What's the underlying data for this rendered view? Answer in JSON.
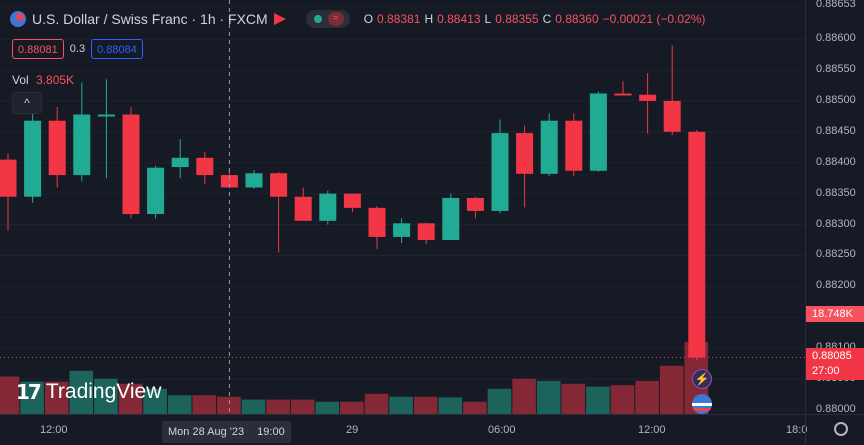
{
  "symbol": {
    "title": "U.S. Dollar / Swiss Franc · 1h · FXCM",
    "open_label": "O",
    "open": "0.88381",
    "high_label": "H",
    "high": "0.88413",
    "low_label": "L",
    "low": "0.88355",
    "close_label": "C",
    "close": "0.88360",
    "change": "−0.00021 (−0.02%)"
  },
  "trade": {
    "sell": "0.88081",
    "spread": "0.3",
    "buy": "0.88084"
  },
  "volume": {
    "label": "Vol",
    "value": "3.805K"
  },
  "brand": "TradingView",
  "price_axis": {
    "ticks": [
      "0.88653",
      "0.88600",
      "0.88550",
      "0.88500",
      "0.88450",
      "0.88400",
      "0.88350",
      "0.88300",
      "0.88250",
      "0.88200",
      "0.88150",
      "0.88100",
      "0.88050",
      "0.88000"
    ],
    "volume_tag": "18.748K",
    "price_tag": "0.88085",
    "countdown": "27:00"
  },
  "time_axis": {
    "labels": [
      "12:00",
      "29",
      "06:00",
      "12:00",
      "18:0"
    ],
    "crosshair_date": "Mon 28 Aug '23",
    "crosshair_time": "19:00"
  },
  "colors": {
    "up": "#22ab94",
    "down": "#f23645",
    "background": "#161a25",
    "grid": "#1f2330"
  },
  "chart_data": {
    "type": "candlestick",
    "title": "U.S. Dollar / Swiss Franc · 1h · FXCM",
    "x_labels": [
      "12:00",
      "29",
      "06:00",
      "12:00",
      "18:0"
    ],
    "ylim": [
      0.88,
      0.8866
    ],
    "candles": [
      {
        "o": 0.88405,
        "h": 0.88415,
        "l": 0.8829,
        "c": 0.88345
      },
      {
        "o": 0.88345,
        "h": 0.8848,
        "l": 0.88335,
        "c": 0.88468
      },
      {
        "o": 0.88468,
        "h": 0.8849,
        "l": 0.8836,
        "c": 0.8838
      },
      {
        "o": 0.8838,
        "h": 0.8853,
        "l": 0.8837,
        "c": 0.88478
      },
      {
        "o": 0.88478,
        "h": 0.88535,
        "l": 0.88375,
        "c": 0.88478
      },
      {
        "o": 0.88478,
        "h": 0.8849,
        "l": 0.8831,
        "c": 0.88317
      },
      {
        "o": 0.88317,
        "h": 0.88395,
        "l": 0.8831,
        "c": 0.88392
      },
      {
        "o": 0.88393,
        "h": 0.88438,
        "l": 0.88375,
        "c": 0.88408
      },
      {
        "o": 0.88408,
        "h": 0.88418,
        "l": 0.88365,
        "c": 0.8838
      },
      {
        "o": 0.8838,
        "h": 0.8839,
        "l": 0.8836,
        "c": 0.8836
      },
      {
        "o": 0.8836,
        "h": 0.88388,
        "l": 0.88358,
        "c": 0.88383
      },
      {
        "o": 0.88383,
        "h": 0.88385,
        "l": 0.88255,
        "c": 0.88345
      },
      {
        "o": 0.88345,
        "h": 0.8836,
        "l": 0.88308,
        "c": 0.88306
      },
      {
        "o": 0.88306,
        "h": 0.88355,
        "l": 0.883,
        "c": 0.8835
      },
      {
        "o": 0.8835,
        "h": 0.8835,
        "l": 0.8832,
        "c": 0.88327
      },
      {
        "o": 0.88327,
        "h": 0.8833,
        "l": 0.8826,
        "c": 0.8828
      },
      {
        "o": 0.8828,
        "h": 0.8831,
        "l": 0.8827,
        "c": 0.88302
      },
      {
        "o": 0.88302,
        "h": 0.88303,
        "l": 0.88268,
        "c": 0.88275
      },
      {
        "o": 0.88275,
        "h": 0.8835,
        "l": 0.88275,
        "c": 0.88343
      },
      {
        "o": 0.88343,
        "h": 0.88345,
        "l": 0.8831,
        "c": 0.88322
      },
      {
        "o": 0.88322,
        "h": 0.8847,
        "l": 0.88318,
        "c": 0.88448
      },
      {
        "o": 0.88448,
        "h": 0.8846,
        "l": 0.88328,
        "c": 0.88382
      },
      {
        "o": 0.88382,
        "h": 0.8848,
        "l": 0.88378,
        "c": 0.88468
      },
      {
        "o": 0.88468,
        "h": 0.8848,
        "l": 0.88378,
        "c": 0.88387
      },
      {
        "o": 0.88387,
        "h": 0.88515,
        "l": 0.88385,
        "c": 0.88512
      },
      {
        "o": 0.88512,
        "h": 0.88532,
        "l": 0.8851,
        "c": 0.88511
      },
      {
        "o": 0.8851,
        "h": 0.88545,
        "l": 0.88447,
        "c": 0.885
      },
      {
        "o": 0.885,
        "h": 0.8859,
        "l": 0.88445,
        "c": 0.8845
      },
      {
        "o": 0.8845,
        "h": 0.88453,
        "l": 0.8808,
        "c": 0.88085
      }
    ],
    "volume": [
      0.52,
      0.45,
      0.45,
      0.6,
      0.49,
      0.42,
      0.35,
      0.26,
      0.26,
      0.24,
      0.2,
      0.2,
      0.2,
      0.17,
      0.17,
      0.28,
      0.24,
      0.24,
      0.23,
      0.17,
      0.35,
      0.49,
      0.46,
      0.42,
      0.38,
      0.4,
      0.46,
      0.67,
      1.0
    ]
  }
}
